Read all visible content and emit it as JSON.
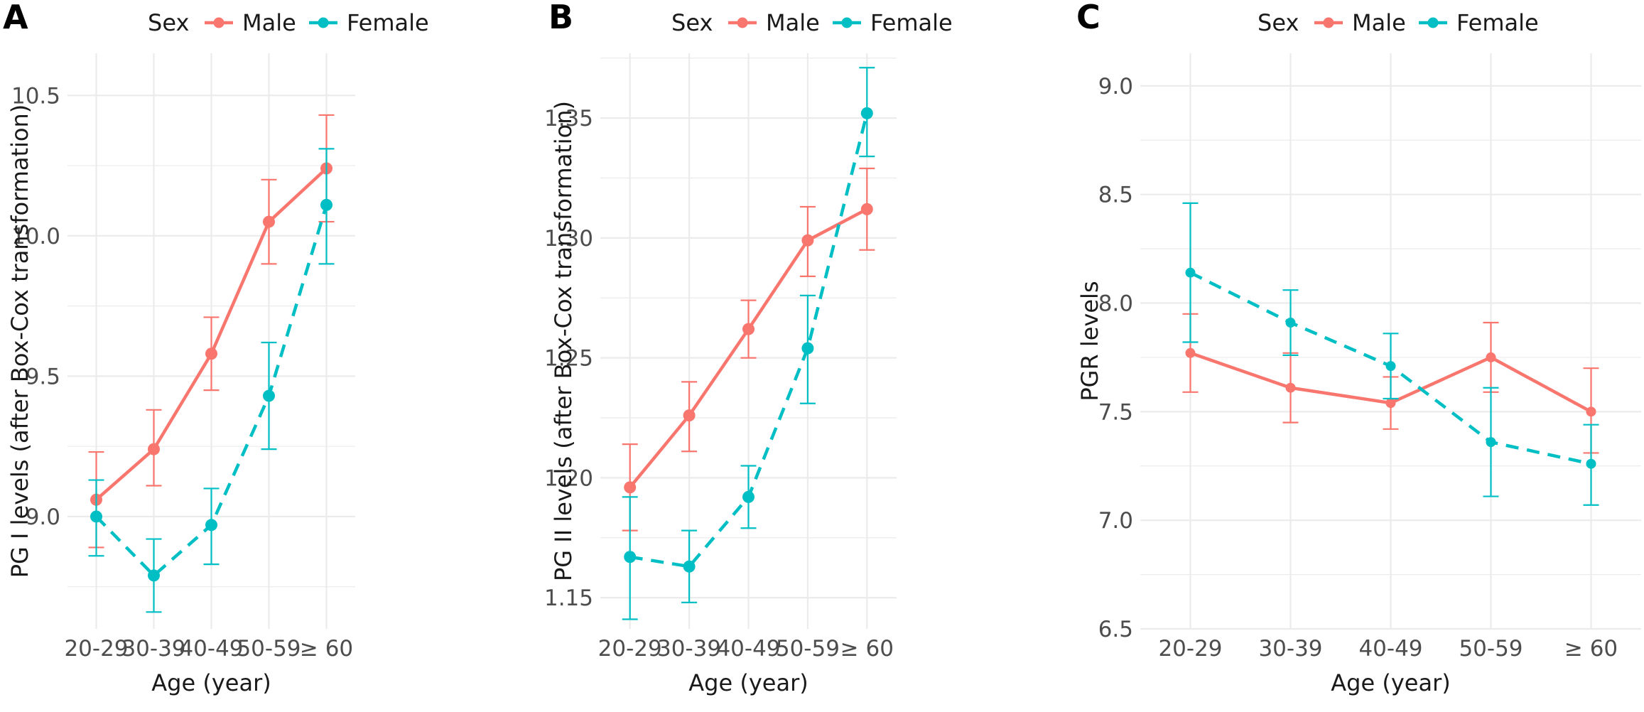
{
  "colors": {
    "male": "#F8766D",
    "female": "#00BFC4",
    "grid": "#EBEBEB",
    "text": "#1a1a1a",
    "axis_text": "#4d4d4d"
  },
  "legend": {
    "title": "Sex",
    "position": "top"
  },
  "chart_data": [
    {
      "panel": "A",
      "type": "line",
      "categories": [
        "20-29",
        "30-39",
        "40-49",
        "50-59",
        "≥ 60"
      ],
      "xlabel": "Age (year)",
      "ylabel": "PG I levels (after Box-Cox transformation)",
      "ylim": [
        8.6,
        10.65
      ],
      "yticks": [
        9.0,
        9.5,
        10.0,
        10.5
      ],
      "yticklabels": [
        "9.0",
        "9.5",
        "10.0",
        "10.5"
      ],
      "series": [
        {
          "name": "Male",
          "line": "solid",
          "values": [
            9.06,
            9.24,
            9.58,
            10.05,
            10.24
          ],
          "lower": [
            8.89,
            9.11,
            9.45,
            9.9,
            10.05
          ],
          "upper": [
            9.23,
            9.38,
            9.71,
            10.2,
            10.43
          ]
        },
        {
          "name": "Female",
          "line": "dashed",
          "values": [
            9.0,
            8.79,
            8.97,
            9.43,
            10.11
          ],
          "lower": [
            8.86,
            8.66,
            8.83,
            9.24,
            9.9
          ],
          "upper": [
            9.13,
            8.92,
            9.1,
            9.62,
            10.31
          ]
        }
      ]
    },
    {
      "panel": "B",
      "type": "line",
      "categories": [
        "20-29",
        "30-39",
        "40-49",
        "50-59",
        "≥ 60"
      ],
      "xlabel": "Age (year)",
      "ylabel": "PG II levels (after Box-Cox transformation)",
      "ylim": [
        1.137,
        1.377
      ],
      "yticks": [
        1.15,
        1.2,
        1.25,
        1.3,
        1.35
      ],
      "yticklabels": [
        "1.15",
        "1.20",
        "1.25",
        "1.30",
        "1.35"
      ],
      "series": [
        {
          "name": "Male",
          "line": "solid",
          "values": [
            1.196,
            1.226,
            1.262,
            1.299,
            1.312
          ],
          "lower": [
            1.178,
            1.211,
            1.25,
            1.284,
            1.295
          ],
          "upper": [
            1.214,
            1.24,
            1.274,
            1.313,
            1.329
          ]
        },
        {
          "name": "Female",
          "line": "dashed",
          "values": [
            1.167,
            1.163,
            1.192,
            1.254,
            1.352
          ],
          "lower": [
            1.141,
            1.148,
            1.179,
            1.231,
            1.334
          ],
          "upper": [
            1.192,
            1.178,
            1.205,
            1.276,
            1.371
          ]
        }
      ]
    },
    {
      "panel": "C",
      "type": "line",
      "categories": [
        "20-29",
        "30-39",
        "40-49",
        "50-59",
        "≥ 60"
      ],
      "xlabel": "Age (year)",
      "ylabel": "PGR levels",
      "ylim": [
        6.5,
        9.15
      ],
      "yticks": [
        6.5,
        7.0,
        7.5,
        8.0,
        8.5,
        9.0
      ],
      "yticklabels": [
        "6.5",
        "7.0",
        "7.5",
        "8.0",
        "8.5",
        "9.0"
      ],
      "series": [
        {
          "name": "Male",
          "line": "solid",
          "values": [
            7.77,
            7.61,
            7.54,
            7.75,
            7.5
          ],
          "lower": [
            7.59,
            7.45,
            7.42,
            7.59,
            7.31
          ],
          "upper": [
            7.95,
            7.77,
            7.66,
            7.91,
            7.7
          ]
        },
        {
          "name": "Female",
          "line": "dashed",
          "values": [
            8.14,
            7.91,
            7.71,
            7.36,
            7.26
          ],
          "lower": [
            7.82,
            7.76,
            7.56,
            7.11,
            7.07
          ],
          "upper": [
            8.46,
            8.06,
            7.86,
            7.61,
            7.44
          ]
        }
      ]
    }
  ]
}
